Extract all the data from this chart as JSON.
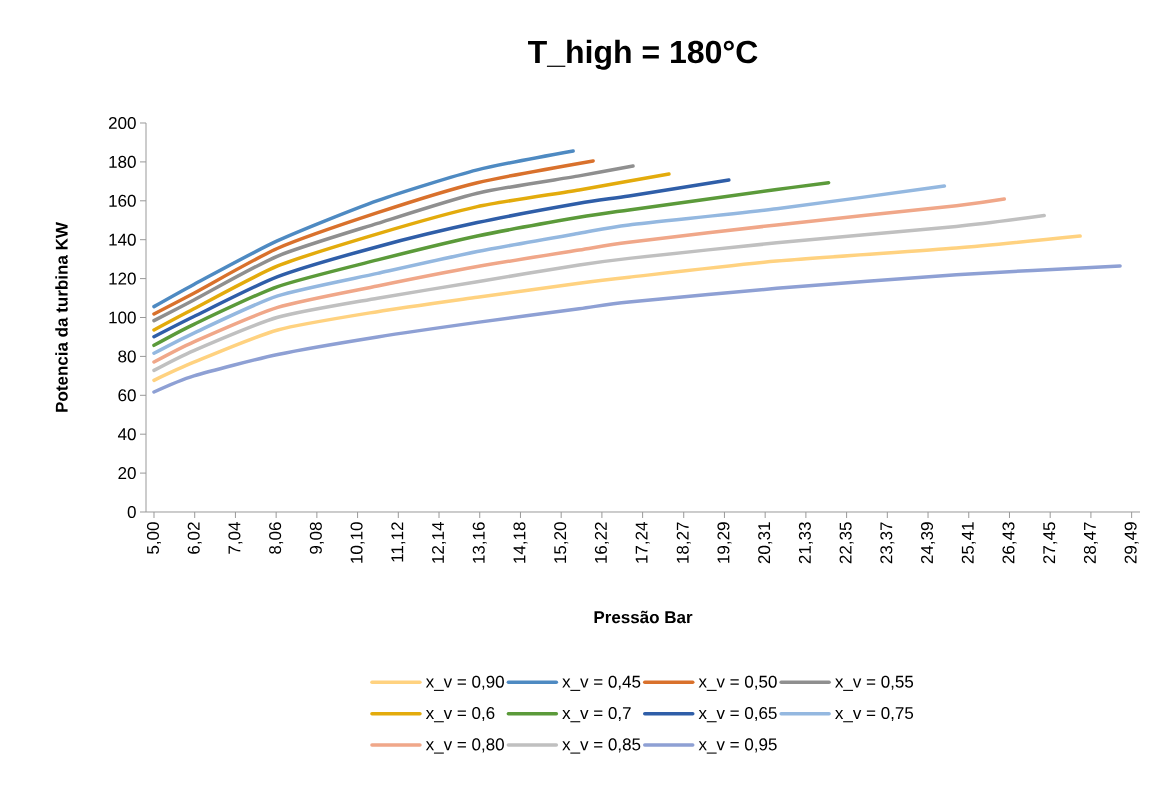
{
  "chart_data": {
    "type": "line",
    "title": "T_high = 180°C",
    "xlabel": "Pressão Bar",
    "ylabel": "Potencia da turbina KW",
    "xlim": [
      4.8,
      29.7
    ],
    "ylim": [
      0,
      200
    ],
    "xticks": [
      {
        "value": 5.0,
        "label": "5,00"
      },
      {
        "value": 6.02,
        "label": "6,02"
      },
      {
        "value": 7.04,
        "label": "7,04"
      },
      {
        "value": 8.06,
        "label": "8,06"
      },
      {
        "value": 9.08,
        "label": "9,08"
      },
      {
        "value": 10.1,
        "label": "10,10"
      },
      {
        "value": 11.12,
        "label": "11,12"
      },
      {
        "value": 12.14,
        "label": "12,14"
      },
      {
        "value": 13.16,
        "label": "13,16"
      },
      {
        "value": 14.18,
        "label": "14,18"
      },
      {
        "value": 15.2,
        "label": "15,20"
      },
      {
        "value": 16.22,
        "label": "16,22"
      },
      {
        "value": 17.24,
        "label": "17,24"
      },
      {
        "value": 18.27,
        "label": "18,27"
      },
      {
        "value": 19.29,
        "label": "19,29"
      },
      {
        "value": 20.31,
        "label": "20,31"
      },
      {
        "value": 21.33,
        "label": "21,33"
      },
      {
        "value": 22.35,
        "label": "22,35"
      },
      {
        "value": 23.37,
        "label": "23,37"
      },
      {
        "value": 24.39,
        "label": "24,39"
      },
      {
        "value": 25.41,
        "label": "25,41"
      },
      {
        "value": 26.43,
        "label": "26,43"
      },
      {
        "value": 27.45,
        "label": "27,45"
      },
      {
        "value": 28.47,
        "label": "28,47"
      },
      {
        "value": 29.49,
        "label": "29,49"
      }
    ],
    "yticks": [
      0,
      20,
      40,
      60,
      80,
      100,
      120,
      140,
      160,
      180,
      200
    ],
    "grid": false,
    "legend": "bottom",
    "marker": "none",
    "line_style": "solid",
    "series": [
      {
        "name": "x_v = 0,90",
        "color": "#ffd280",
        "x": [
          5,
          6,
          8.1,
          10.6,
          13.1,
          15.65,
          16.9,
          20.6,
          25.1,
          28.2
        ],
        "values": [
          67.7,
          77.0,
          93.6,
          103.0,
          110.4,
          117.6,
          120.7,
          129.0,
          135.7,
          141.9
        ]
      },
      {
        "name": "x_v = 0,45",
        "color": "#4e8ac2",
        "x": [
          5,
          6,
          8.1,
          10.6,
          13.1,
          15.5
        ],
        "values": [
          105.6,
          117.0,
          139.5,
          160.1,
          175.9,
          185.6
        ]
      },
      {
        "name": "x_v = 0,50",
        "color": "#d9712c",
        "x": [
          5,
          6,
          8.1,
          10.6,
          13.1,
          16.0
        ],
        "values": [
          101.8,
          112.5,
          135.6,
          153.9,
          169.3,
          180.5
        ]
      },
      {
        "name": "x_v = 0,55",
        "color": "#8f8f8f",
        "x": [
          5,
          6,
          8.1,
          10.6,
          13.1,
          15.65,
          17.0
        ],
        "values": [
          98.4,
          109.0,
          131.6,
          148.4,
          163.9,
          172.8,
          177.9
        ]
      },
      {
        "name": "x_v = 0,6",
        "color": "#e3ab0c",
        "x": [
          5,
          6,
          8.1,
          10.6,
          13.1,
          15.65,
          17.9
        ],
        "values": [
          93.6,
          104.5,
          126.5,
          143.0,
          157.0,
          165.6,
          173.8
        ]
      },
      {
        "name": "x_v = 0,7",
        "color": "#5b9a3a",
        "x": [
          5,
          6,
          8.1,
          10.6,
          13.1,
          15.65,
          16.9,
          20.6,
          21.9
        ],
        "values": [
          85.7,
          96.5,
          115.9,
          129.6,
          141.9,
          151.5,
          155.3,
          165.8,
          169.3
        ]
      },
      {
        "name": "x_v = 0,65",
        "color": "#2f5ea8",
        "x": [
          5,
          6,
          8.1,
          10.6,
          13.1,
          15.65,
          16.9,
          19.4
        ],
        "values": [
          90.1,
          100.5,
          121.0,
          136.4,
          148.8,
          158.7,
          162.5,
          170.7
        ]
      },
      {
        "name": "x_v = 0,75",
        "color": "#94b8e0",
        "x": [
          5,
          6,
          8.1,
          10.6,
          13.1,
          15.65,
          16.9,
          20.6,
          24.8
        ],
        "values": [
          81.6,
          92.0,
          111.1,
          122.7,
          133.9,
          143.3,
          147.6,
          155.9,
          167.6
        ]
      },
      {
        "name": "x_v = 0,80",
        "color": "#f0a789",
        "x": [
          5,
          6,
          8.1,
          10.6,
          13.1,
          15.65,
          16.9,
          20.6,
          25.1,
          26.3
        ],
        "values": [
          77.1,
          87.5,
          105.2,
          116.2,
          126.2,
          134.7,
          138.7,
          147.6,
          157.5,
          160.9
        ]
      },
      {
        "name": "x_v = 0,85",
        "color": "#c0c0c0",
        "x": [
          5,
          6,
          8.1,
          10.6,
          13.1,
          15.65,
          16.9,
          20.6,
          25.1,
          27.3
        ],
        "values": [
          72.8,
          83.0,
          100.1,
          109.9,
          118.4,
          127.0,
          130.4,
          138.4,
          146.8,
          152.4
        ]
      },
      {
        "name": "x_v = 0,95",
        "color": "#8ea0d4",
        "x": [
          5,
          6,
          8.1,
          10.6,
          13.1,
          15.65,
          16.9,
          20.6,
          25.1,
          29.2
        ],
        "values": [
          61.7,
          70.0,
          81.0,
          90.0,
          97.5,
          104.5,
          108.0,
          115.0,
          122.0,
          126.5
        ]
      }
    ]
  }
}
